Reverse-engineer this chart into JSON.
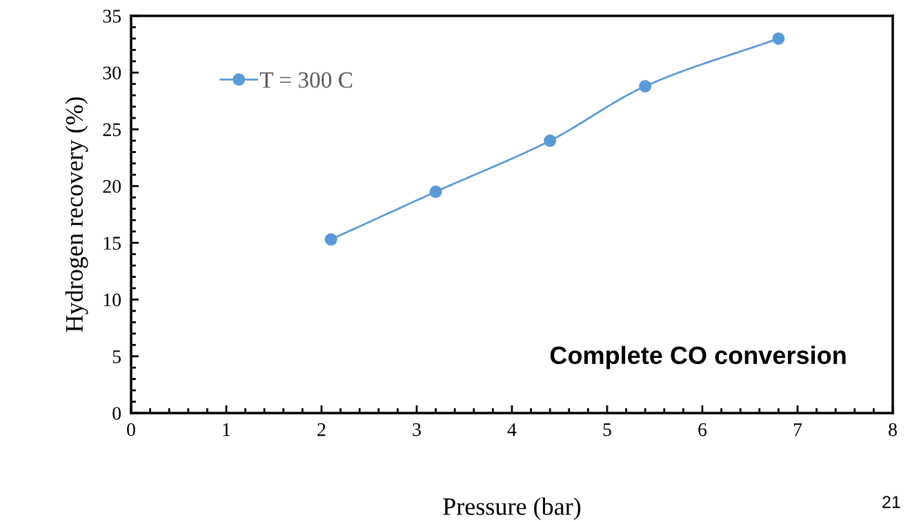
{
  "chart_data": {
    "type": "line",
    "xlabel": "Pressure (bar)",
    "ylabel": "Hydrogen recovery (%)",
    "x": [
      2.1,
      3.2,
      4.4,
      5.4,
      6.8
    ],
    "series": [
      {
        "name": "T = 300 C",
        "color": "#5b9bd5",
        "values": [
          15.3,
          19.5,
          24.0,
          28.8,
          33.0
        ]
      }
    ],
    "xlim": [
      0,
      8
    ],
    "ylim": [
      0,
      35
    ],
    "xticks": [
      0,
      1,
      2,
      3,
      4,
      5,
      6,
      7,
      8
    ],
    "yticks": [
      0,
      5,
      10,
      15,
      20,
      25,
      30,
      35
    ],
    "grid": false,
    "legend": "top left",
    "marker": "circle",
    "line_style": "solid",
    "annotations": [
      "Complete CO conversion",
      "21"
    ]
  }
}
